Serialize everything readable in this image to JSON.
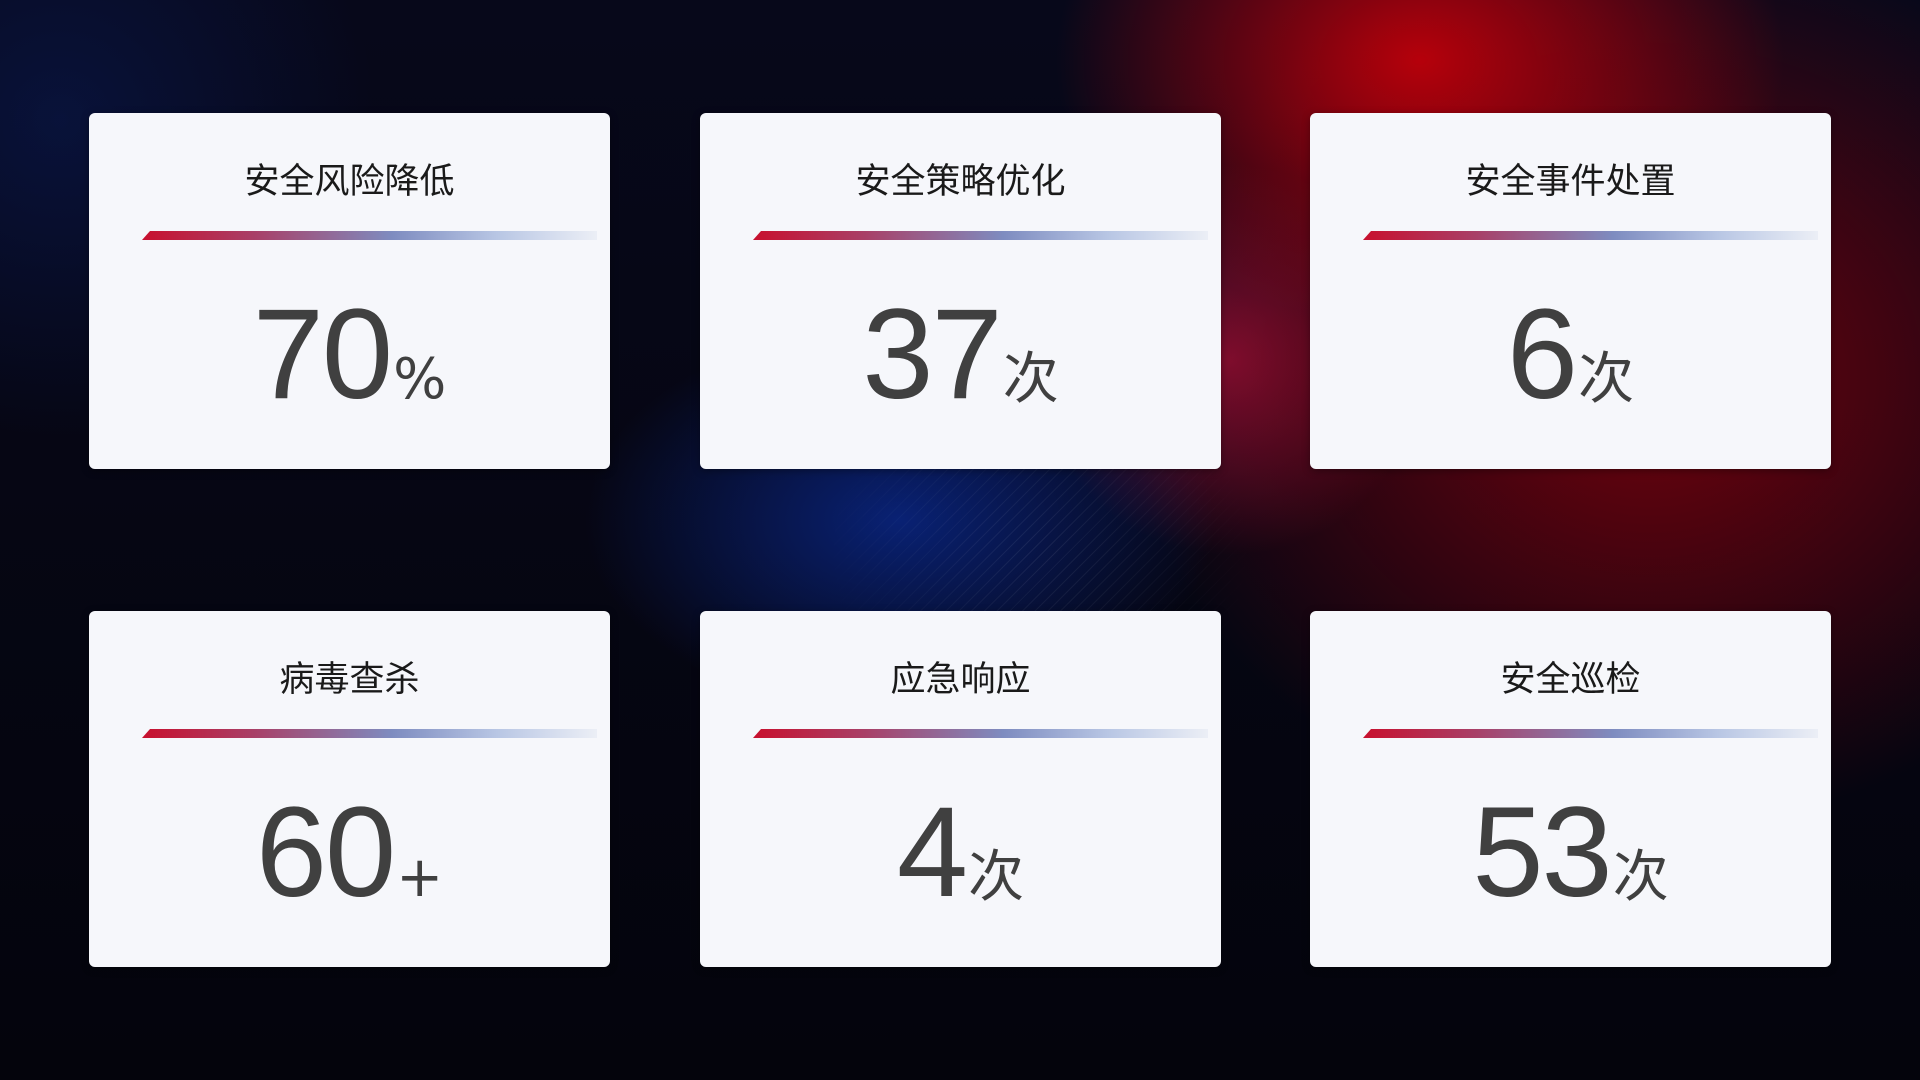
{
  "cards": [
    {
      "title": "安全风险降低",
      "value": "70",
      "unit": "%"
    },
    {
      "title": "安全策略优化",
      "value": "37",
      "unit": "次"
    },
    {
      "title": "安全事件处置",
      "value": "6",
      "unit": "次"
    },
    {
      "title": "病毒查杀",
      "value": "60",
      "unit": "+"
    },
    {
      "title": "应急响应",
      "value": "4",
      "unit": "次"
    },
    {
      "title": "安全巡检",
      "value": "53",
      "unit": "次"
    }
  ],
  "colors": {
    "accent_red": "#c8102e",
    "accent_blue": "#7e8cc0",
    "card_bg": "#f6f7fb",
    "value_text": "#404040"
  }
}
